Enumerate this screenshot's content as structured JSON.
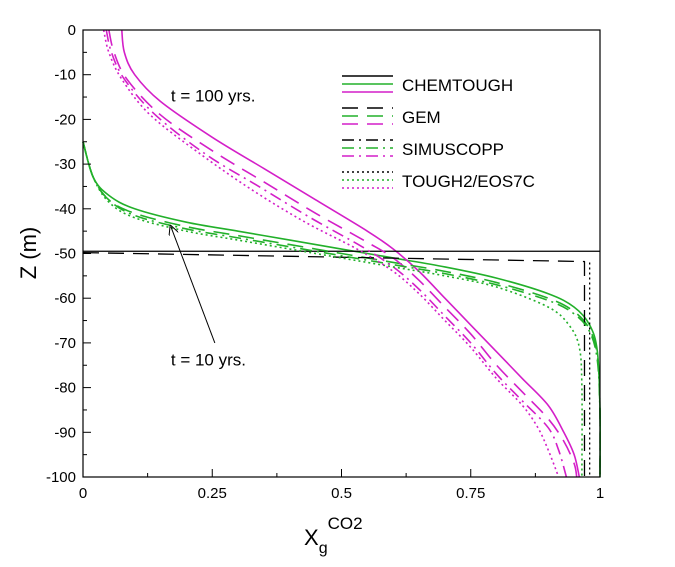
{
  "chart_data": {
    "type": "line",
    "xlabel": "X",
    "xlabel_sub": "g",
    "xlabel_sup": "CO2",
    "ylabel": "Z (m)",
    "xlim": [
      0,
      1
    ],
    "ylim": [
      -100,
      0
    ],
    "x_ticks": [
      0,
      0.25,
      0.5,
      0.75,
      1
    ],
    "x_tick_labels": [
      "0",
      "0.25",
      "0.5",
      "0.75",
      "1"
    ],
    "y_ticks": [
      0,
      -10,
      -20,
      -30,
      -40,
      -50,
      -60,
      -70,
      -80,
      -90,
      -100
    ],
    "y_tick_labels": [
      "0",
      "-10",
      "-20",
      "-30",
      "-40",
      "-50",
      "-60",
      "-70",
      "-80",
      "-90",
      "-100"
    ],
    "grid": false,
    "legend_position": "top-right",
    "colors": {
      "t10": "#22b02a",
      "t100": "#d41fc8",
      "reference": "#000000"
    },
    "annotations": [
      {
        "text": "t = 100 yrs.",
        "x": 0.17,
        "y": -16
      },
      {
        "text": "t = 10 yrs.",
        "x": 0.17,
        "y": -75,
        "arrow_to": {
          "x": 0.17,
          "y": -44
        },
        "arrow_from": {
          "x": 0.255,
          "y": -70
        }
      }
    ],
    "legend": [
      {
        "name": "CHEMTOUGH",
        "dash": "solid"
      },
      {
        "name": "GEM",
        "dash": "dashed"
      },
      {
        "name": "SIMUSCOPP",
        "dash": "dashdot"
      },
      {
        "name": "TOUGH2/EOS7C",
        "dash": "dotted"
      }
    ],
    "series": [
      {
        "model": "CHEMTOUGH",
        "time": "t = 10 yrs.",
        "dash": "solid",
        "color": "#22b02a",
        "points": [
          [
            0.0,
            -25
          ],
          [
            0.02,
            -33
          ],
          [
            0.05,
            -37
          ],
          [
            0.1,
            -40
          ],
          [
            0.2,
            -43
          ],
          [
            0.3,
            -45
          ],
          [
            0.4,
            -47
          ],
          [
            0.5,
            -49
          ],
          [
            0.6,
            -51
          ],
          [
            0.7,
            -53
          ],
          [
            0.8,
            -55.5
          ],
          [
            0.9,
            -59
          ],
          [
            0.95,
            -62
          ],
          [
            0.98,
            -66
          ],
          [
            0.995,
            -72
          ],
          [
            1.0,
            -85
          ],
          [
            1.0,
            -100
          ]
        ]
      },
      {
        "model": "CHEMTOUGH",
        "time": "t = 100 yrs.",
        "dash": "solid",
        "color": "#d41fc8",
        "points": [
          [
            0.075,
            0
          ],
          [
            0.08,
            -5
          ],
          [
            0.1,
            -10
          ],
          [
            0.15,
            -16
          ],
          [
            0.25,
            -24
          ],
          [
            0.35,
            -31
          ],
          [
            0.45,
            -38
          ],
          [
            0.55,
            -45
          ],
          [
            0.6,
            -49
          ],
          [
            0.65,
            -54
          ],
          [
            0.7,
            -60
          ],
          [
            0.75,
            -66
          ],
          [
            0.8,
            -72
          ],
          [
            0.85,
            -78
          ],
          [
            0.9,
            -84
          ],
          [
            0.93,
            -90
          ],
          [
            0.95,
            -95
          ],
          [
            0.96,
            -100
          ]
        ]
      },
      {
        "model": "CHEMTOUGH",
        "time": "reference",
        "dash": "solid",
        "color": "#000000",
        "points": [
          [
            0.0,
            -49.5
          ],
          [
            1.0,
            -49.5
          ]
        ]
      },
      {
        "model": "GEM",
        "time": "t = 10 yrs.",
        "dash": "dashed",
        "color": "#22b02a",
        "points": [
          [
            0.0,
            -25
          ],
          [
            0.02,
            -33
          ],
          [
            0.05,
            -38
          ],
          [
            0.1,
            -41
          ],
          [
            0.2,
            -44
          ],
          [
            0.3,
            -46
          ],
          [
            0.4,
            -48
          ],
          [
            0.5,
            -50
          ],
          [
            0.6,
            -52
          ],
          [
            0.7,
            -54
          ],
          [
            0.8,
            -56.5
          ],
          [
            0.9,
            -60
          ],
          [
            0.95,
            -63
          ],
          [
            0.98,
            -67
          ],
          [
            0.995,
            -73
          ],
          [
            1.0,
            -85
          ],
          [
            1.0,
            -100
          ]
        ]
      },
      {
        "model": "GEM",
        "time": "t = 100 yrs.",
        "dash": "dashed",
        "color": "#d41fc8",
        "points": [
          [
            0.05,
            0
          ],
          [
            0.06,
            -5
          ],
          [
            0.085,
            -11
          ],
          [
            0.15,
            -19
          ],
          [
            0.25,
            -27
          ],
          [
            0.35,
            -34
          ],
          [
            0.45,
            -41
          ],
          [
            0.55,
            -47.5
          ],
          [
            0.6,
            -51
          ],
          [
            0.65,
            -56
          ],
          [
            0.7,
            -62
          ],
          [
            0.75,
            -68
          ],
          [
            0.8,
            -75
          ],
          [
            0.85,
            -81
          ],
          [
            0.9,
            -87
          ],
          [
            0.93,
            -92
          ],
          [
            0.95,
            -97
          ],
          [
            0.955,
            -100
          ]
        ]
      },
      {
        "model": "GEM",
        "time": "reference",
        "dash": "dashed",
        "color": "#000000",
        "points": [
          [
            0.0,
            -49.8
          ],
          [
            0.97,
            -51.8
          ],
          [
            0.97,
            -100
          ]
        ]
      },
      {
        "model": "SIMUSCOPP",
        "time": "t = 10 yrs.",
        "dash": "dashdot",
        "color": "#22b02a",
        "points": [
          [
            0.0,
            -25
          ],
          [
            0.02,
            -33
          ],
          [
            0.05,
            -38
          ],
          [
            0.1,
            -41.5
          ],
          [
            0.2,
            -44.5
          ],
          [
            0.3,
            -46.5
          ],
          [
            0.4,
            -48.5
          ],
          [
            0.5,
            -50.5
          ],
          [
            0.6,
            -52.5
          ],
          [
            0.7,
            -54.5
          ],
          [
            0.8,
            -57
          ],
          [
            0.9,
            -60.5
          ],
          [
            0.95,
            -63.5
          ],
          [
            0.98,
            -67.5
          ],
          [
            0.995,
            -74
          ],
          [
            1.0,
            -86
          ],
          [
            1.0,
            -100
          ]
        ]
      },
      {
        "model": "SIMUSCOPP",
        "time": "t = 100 yrs.",
        "dash": "dashdot",
        "color": "#d41fc8",
        "points": [
          [
            0.045,
            0
          ],
          [
            0.055,
            -5
          ],
          [
            0.08,
            -11
          ],
          [
            0.14,
            -19
          ],
          [
            0.24,
            -28
          ],
          [
            0.34,
            -35
          ],
          [
            0.44,
            -42
          ],
          [
            0.54,
            -48.5
          ],
          [
            0.6,
            -53
          ],
          [
            0.65,
            -58
          ],
          [
            0.7,
            -64
          ],
          [
            0.75,
            -70
          ],
          [
            0.8,
            -77
          ],
          [
            0.85,
            -83
          ],
          [
            0.9,
            -89
          ],
          [
            0.92,
            -94
          ],
          [
            0.935,
            -100
          ]
        ]
      },
      {
        "model": "TOUGH2/EOS7C",
        "time": "t = 10 yrs.",
        "dash": "dotted",
        "color": "#22b02a",
        "points": [
          [
            0.0,
            -25
          ],
          [
            0.02,
            -33
          ],
          [
            0.05,
            -38.5
          ],
          [
            0.1,
            -42
          ],
          [
            0.2,
            -45
          ],
          [
            0.3,
            -47
          ],
          [
            0.4,
            -49
          ],
          [
            0.5,
            -51
          ],
          [
            0.6,
            -53
          ],
          [
            0.7,
            -55
          ],
          [
            0.8,
            -57.5
          ],
          [
            0.9,
            -62
          ],
          [
            0.94,
            -66
          ],
          [
            0.96,
            -71
          ],
          [
            0.965,
            -80
          ],
          [
            0.965,
            -100
          ]
        ]
      },
      {
        "model": "TOUGH2/EOS7C",
        "time": "t = 100 yrs.",
        "dash": "dotted",
        "color": "#d41fc8",
        "points": [
          [
            0.04,
            0
          ],
          [
            0.05,
            -5
          ],
          [
            0.075,
            -11
          ],
          [
            0.13,
            -19
          ],
          [
            0.23,
            -28
          ],
          [
            0.33,
            -36
          ],
          [
            0.43,
            -43
          ],
          [
            0.53,
            -49
          ],
          [
            0.6,
            -54
          ],
          [
            0.65,
            -59
          ],
          [
            0.7,
            -65
          ],
          [
            0.75,
            -71
          ],
          [
            0.8,
            -78
          ],
          [
            0.85,
            -84
          ],
          [
            0.88,
            -89
          ],
          [
            0.9,
            -94
          ],
          [
            0.92,
            -100
          ]
        ]
      },
      {
        "model": "TOUGH2/EOS7C",
        "time": "reference",
        "dash": "dotted",
        "color": "#000000",
        "points": [
          [
            0.98,
            -52
          ],
          [
            0.98,
            -100
          ]
        ]
      }
    ]
  }
}
